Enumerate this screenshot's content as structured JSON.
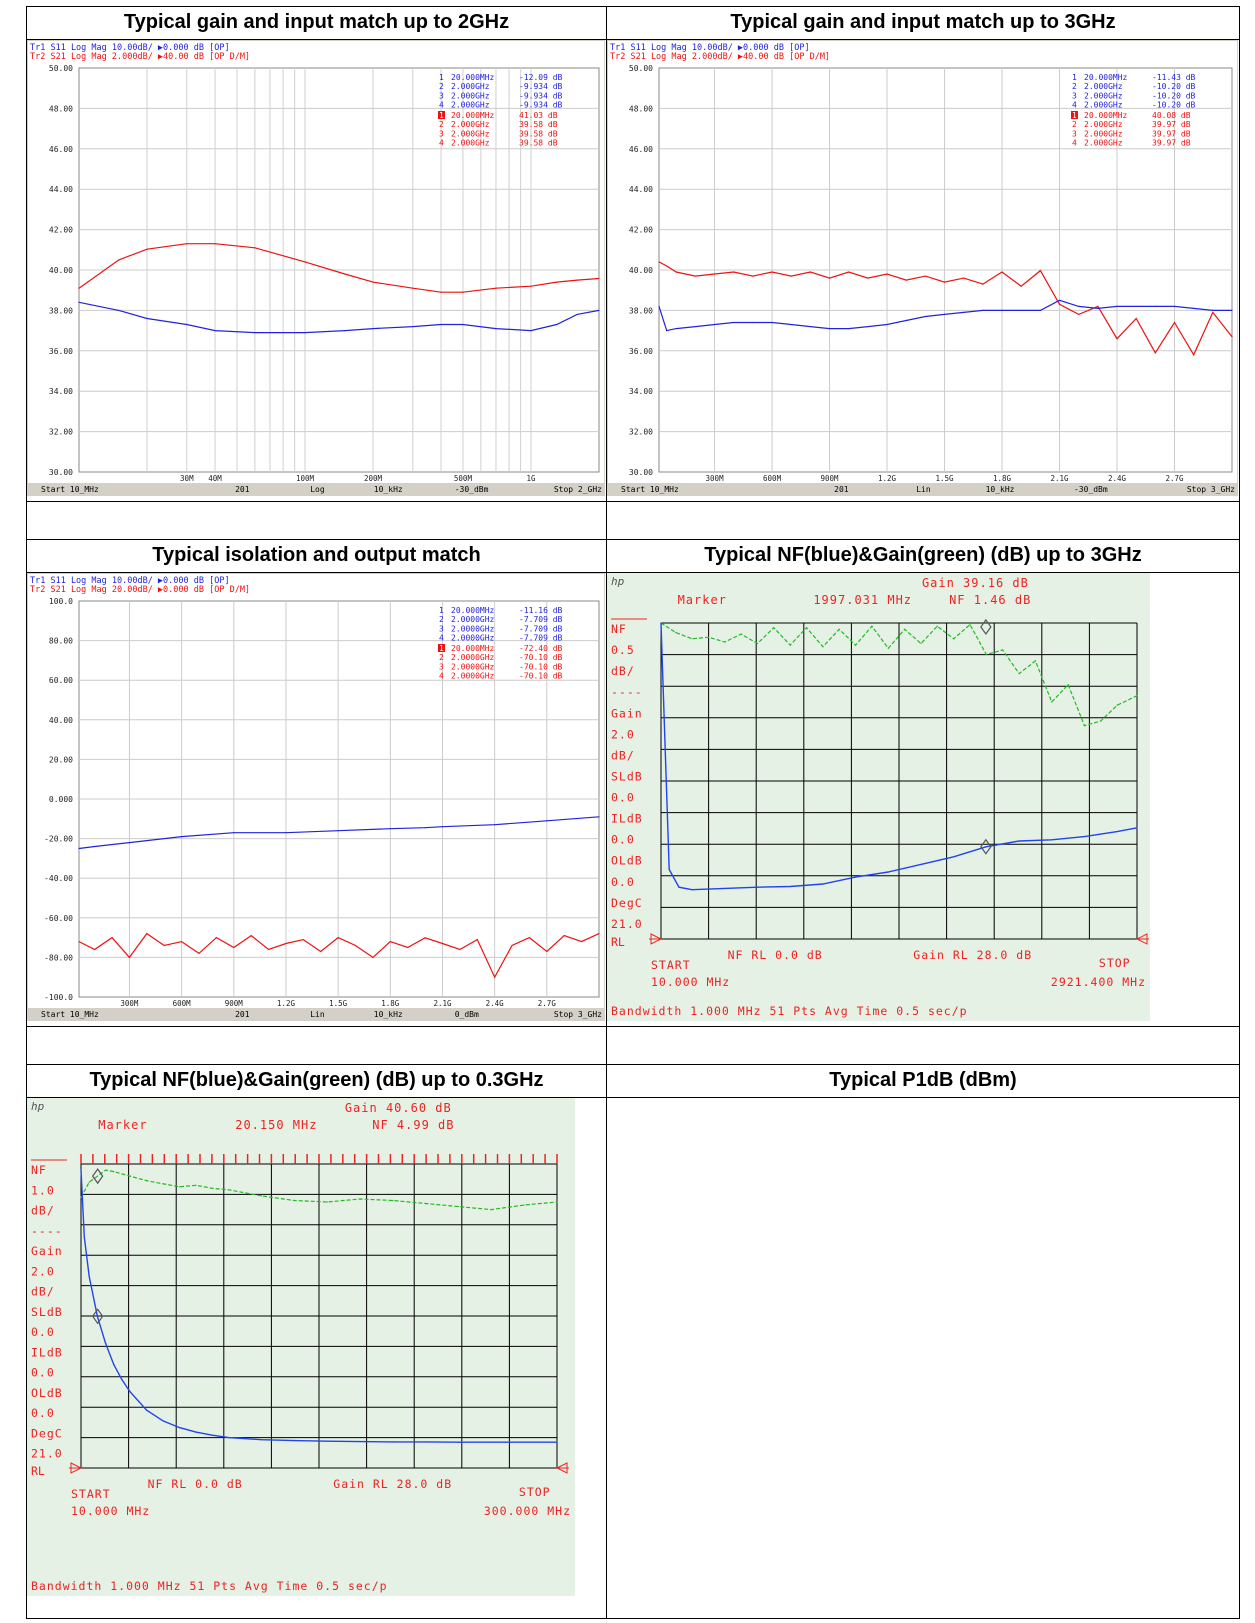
{
  "captions": [
    "Typical gain and input match up to 2GHz",
    "Typical gain and input match up to 3GHz",
    "Typical isolation and output match",
    "Typical NF(blue)&Gain(green) (dB) up to 3GHz",
    "Typical NF(blue)&Gain(green) (dB) up to 0.3GHz",
    "Typical P1dB (dBm)"
  ],
  "colors": {
    "s11": "#2222dd",
    "s21": "#ee1111",
    "nf": "#2244ee",
    "gain": "#22bb22",
    "hp_text": "#ee2222",
    "hp_bg": "#e4f1e4"
  },
  "chart_data": [
    {
      "type": "line",
      "id": "vna1",
      "header": [
        "Tr1  S11  Log Mag  10.00dB/  ▶0.000 dB  [OP]",
        "Tr2  S21  Log Mag  2.000dB/  ▶40.00 dB  [OP D/M]"
      ],
      "y_ticks": [
        "50.00",
        "48.00",
        "46.00",
        "44.00",
        "42.00",
        "40.00",
        "38.00",
        "36.00",
        "34.00",
        "32.00",
        "30.00"
      ],
      "y_range": [
        30,
        50
      ],
      "x_scale": "log",
      "x_range_mhz": [
        10,
        2000
      ],
      "x_ticks": [
        {
          "label": "30M",
          "v": 30
        },
        {
          "label": "40M",
          "v": 40
        },
        {
          "label": "100M",
          "v": 100
        },
        {
          "label": "200M",
          "v": 200
        },
        {
          "label": "500M",
          "v": 500
        },
        {
          "label": "1G",
          "v": 1000
        }
      ],
      "footer": [
        "Start 10_MHz",
        "201",
        "Log",
        "10_kHz",
        "-30_dBm",
        "Stop 2_GHz"
      ],
      "markers_s11": [
        [
          "1",
          "20.000MHz",
          "-12.09 dB"
        ],
        [
          "2",
          "2.000GHz",
          "-9.934 dB"
        ],
        [
          "3",
          "2.000GHz",
          "-9.934 dB"
        ],
        [
          "4",
          "2.000GHz",
          "-9.934 dB"
        ]
      ],
      "markers_s21": [
        [
          "1",
          "20.000MHz",
          "41.03 dB"
        ],
        [
          "2",
          "2.000GHz",
          "39.58 dB"
        ],
        [
          "3",
          "2.000GHz",
          "39.58 dB"
        ],
        [
          "4",
          "2.000GHz",
          "39.58 dB"
        ]
      ],
      "series": [
        {
          "name": "S21",
          "x": [
            10,
            15,
            20,
            30,
            40,
            60,
            100,
            150,
            200,
            300,
            400,
            500,
            700,
            1000,
            1300,
            1600,
            2000
          ],
          "values": [
            39.1,
            40.5,
            41.03,
            41.3,
            41.3,
            41.1,
            40.4,
            39.8,
            39.4,
            39.1,
            38.9,
            38.9,
            39.1,
            39.2,
            39.4,
            39.5,
            39.58
          ]
        },
        {
          "name": "S11",
          "x": [
            10,
            15,
            20,
            30,
            40,
            60,
            100,
            150,
            200,
            300,
            400,
            500,
            700,
            1000,
            1300,
            1600,
            2000
          ],
          "values": [
            38.4,
            38.0,
            37.6,
            37.3,
            37.0,
            36.9,
            36.9,
            37.0,
            37.1,
            37.2,
            37.3,
            37.3,
            37.1,
            37.0,
            37.3,
            37.8,
            38.0
          ]
        }
      ]
    },
    {
      "type": "line",
      "id": "vna2",
      "header": [
        "Tr1  S11  Log Mag  10.00dB/  ▶0.000 dB  [OP]",
        "Tr2  S21  Log Mag  2.000dB/  ▶40.00 dB  [OP D/M]"
      ],
      "y_ticks": [
        "50.00",
        "48.00",
        "46.00",
        "44.00",
        "42.00",
        "40.00",
        "38.00",
        "36.00",
        "34.00",
        "32.00",
        "30.00"
      ],
      "y_range": [
        30,
        50
      ],
      "x_scale": "linear",
      "x_range_mhz": [
        10,
        3000
      ],
      "x_ticks": [
        {
          "label": "300M",
          "v": 300
        },
        {
          "label": "600M",
          "v": 600
        },
        {
          "label": "900M",
          "v": 900
        },
        {
          "label": "1.2G",
          "v": 1200
        },
        {
          "label": "1.5G",
          "v": 1500
        },
        {
          "label": "1.8G",
          "v": 1800
        },
        {
          "label": "2.1G",
          "v": 2100
        },
        {
          "label": "2.4G",
          "v": 2400
        },
        {
          "label": "2.7G",
          "v": 2700
        }
      ],
      "footer": [
        "Start 10_MHz",
        "201",
        "Lin",
        "10_kHz",
        "-30_dBm",
        "Stop 3_GHz"
      ],
      "markers_s11": [
        [
          "1",
          "20.000MHz",
          "-11.43 dB"
        ],
        [
          "2",
          "2.000GHz",
          "-10.20 dB"
        ],
        [
          "3",
          "2.000GHz",
          "-10.20 dB"
        ],
        [
          "4",
          "2.000GHz",
          "-10.20 dB"
        ]
      ],
      "markers_s21": [
        [
          "1",
          "20.000MHz",
          "40.08 dB"
        ],
        [
          "2",
          "2.000GHz",
          "39.97 dB"
        ],
        [
          "3",
          "2.000GHz",
          "39.97 dB"
        ],
        [
          "4",
          "2.000GHz",
          "39.97 dB"
        ]
      ],
      "series": [
        {
          "name": "S21",
          "x": [
            10,
            50,
            100,
            200,
            300,
            400,
            500,
            600,
            700,
            800,
            900,
            1000,
            1100,
            1200,
            1300,
            1400,
            1500,
            1600,
            1700,
            1800,
            1900,
            2000,
            2100,
            2200,
            2300,
            2400,
            2500,
            2600,
            2700,
            2800,
            2900,
            3000
          ],
          "values": [
            40.4,
            40.2,
            39.9,
            39.7,
            39.8,
            39.9,
            39.7,
            39.9,
            39.7,
            39.9,
            39.6,
            39.9,
            39.6,
            39.8,
            39.5,
            39.7,
            39.4,
            39.6,
            39.3,
            39.9,
            39.2,
            39.97,
            38.3,
            37.8,
            38.2,
            36.6,
            37.6,
            35.9,
            37.4,
            35.8,
            37.9,
            36.7
          ]
        },
        {
          "name": "S11",
          "x": [
            10,
            50,
            100,
            200,
            300,
            400,
            500,
            600,
            700,
            800,
            900,
            1000,
            1100,
            1200,
            1300,
            1400,
            1500,
            1600,
            1700,
            1800,
            1900,
            2000,
            2100,
            2200,
            2300,
            2400,
            2500,
            2600,
            2700,
            2800,
            2900,
            3000
          ],
          "values": [
            38.2,
            37.0,
            37.1,
            37.2,
            37.3,
            37.4,
            37.4,
            37.4,
            37.3,
            37.2,
            37.1,
            37.1,
            37.2,
            37.3,
            37.5,
            37.7,
            37.8,
            37.9,
            38.0,
            38.0,
            38.0,
            38.0,
            38.5,
            38.2,
            38.1,
            38.2,
            38.2,
            38.2,
            38.2,
            38.1,
            38.0,
            38.0
          ]
        }
      ]
    },
    {
      "type": "line",
      "id": "vna3",
      "header": [
        "Tr1  S11  Log Mag  10.00dB/  ▶0.000 dB  [OP]",
        "Tr2  S21  Log Mag  20.00dB/  ▶0.000 dB  [OP D/M]"
      ],
      "y_ticks": [
        "100.0",
        "80.00",
        "60.00",
        "40.00",
        "20.00",
        "0.000",
        "-20.00",
        "-40.00",
        "-60.00",
        "-80.00",
        "-100.0"
      ],
      "y_range": [
        -100,
        100
      ],
      "x_scale": "linear",
      "x_range_mhz": [
        10,
        3000
      ],
      "x_ticks": [
        {
          "label": "300M",
          "v": 300
        },
        {
          "label": "600M",
          "v": 600
        },
        {
          "label": "900M",
          "v": 900
        },
        {
          "label": "1.2G",
          "v": 1200
        },
        {
          "label": "1.5G",
          "v": 1500
        },
        {
          "label": "1.8G",
          "v": 1800
        },
        {
          "label": "2.1G",
          "v": 2100
        },
        {
          "label": "2.4G",
          "v": 2400
        },
        {
          "label": "2.7G",
          "v": 2700
        }
      ],
      "footer": [
        "Start 10_MHz",
        "201",
        "Lin",
        "10_kHz",
        "0_dBm",
        "Stop 3_GHz"
      ],
      "markers_s11": [
        [
          "1",
          "20.000MHz",
          "-11.16 dB"
        ],
        [
          "2",
          "2.0000GHz",
          "-7.709 dB"
        ],
        [
          "3",
          "2.0000GHz",
          "-7.709 dB"
        ],
        [
          "4",
          "2.0000GHz",
          "-7.709 dB"
        ]
      ],
      "markers_s21": [
        [
          "1",
          "20.000MHz",
          "-72.40 dB"
        ],
        [
          "2",
          "2.0000GHz",
          "-70.10 dB"
        ],
        [
          "3",
          "2.0000GHz",
          "-70.10 dB"
        ],
        [
          "4",
          "2.0000GHz",
          "-70.10 dB"
        ]
      ],
      "series": [
        {
          "name": "S11",
          "x": [
            10,
            100,
            300,
            600,
            900,
            1200,
            1500,
            1800,
            2000,
            2100,
            2400,
            2700,
            3000
          ],
          "values": [
            -25,
            -24,
            -22,
            -19,
            -17,
            -17,
            -16,
            -15,
            -14.5,
            -14,
            -13,
            -11,
            -9
          ]
        },
        {
          "name": "S21",
          "x": [
            10,
            100,
            200,
            300,
            400,
            500,
            600,
            700,
            800,
            900,
            1000,
            1100,
            1200,
            1300,
            1400,
            1500,
            1600,
            1700,
            1800,
            1900,
            2000,
            2100,
            2200,
            2300,
            2400,
            2500,
            2600,
            2700,
            2800,
            2900,
            3000
          ],
          "values": [
            -72,
            -76,
            -70,
            -80,
            -68,
            -74,
            -72,
            -78,
            -70,
            -75,
            -69,
            -76,
            -73,
            -71,
            -77,
            -70,
            -74,
            -80,
            -72,
            -75,
            -70.1,
            -73,
            -76,
            -71,
            -90,
            -74,
            -70,
            -77,
            -69,
            -72,
            -68
          ]
        }
      ]
    },
    {
      "type": "line",
      "id": "nf1",
      "gain_line": "Gain  39.16  dB",
      "marker_line": [
        "Marker",
        "1997.031  MHz",
        "NF  1.46  dB"
      ],
      "left_labels": [
        "NF",
        "0.5",
        "dB/",
        "----",
        "Gain",
        "2.0",
        "dB/",
        "SLdB",
        "0.0",
        "ILdB",
        "0.0",
        "OLdB",
        "0.0",
        "DegC",
        "21.0"
      ],
      "rl": "RL",
      "bottom": [
        "START",
        "10.000  MHz",
        "NF  RL    0.0  dB",
        "Gain  RL  28.0  dB",
        "STOP",
        "2921.400  MHz"
      ],
      "status": "Bandwidth  1.000  MHz    51  Pts    Avg  Time    0.5  sec/p",
      "x_range_mhz": [
        10,
        2921.4
      ],
      "nf_series": {
        "name": "NF",
        "x": [
          10,
          60,
          120,
          200,
          400,
          600,
          800,
          1000,
          1200,
          1400,
          1600,
          1800,
          2000,
          2200,
          2400,
          2600,
          2800,
          2921.4
        ],
        "values": [
          9.5,
          1.1,
          0.82,
          0.78,
          0.8,
          0.82,
          0.83,
          0.87,
          0.98,
          1.06,
          1.18,
          1.3,
          1.46,
          1.55,
          1.57,
          1.62,
          1.7,
          1.76
        ]
      },
      "gain_series": {
        "name": "Gain",
        "x": [
          10,
          100,
          200,
          300,
          400,
          500,
          600,
          700,
          800,
          900,
          1000,
          1100,
          1200,
          1300,
          1400,
          1500,
          1600,
          1700,
          1800,
          1900,
          2000,
          2100,
          2200,
          2300,
          2400,
          2500,
          2600,
          2700,
          2800,
          2921.4
        ],
        "values": [
          41.2,
          40.6,
          40.2,
          40.3,
          40.0,
          40.5,
          39.9,
          40.9,
          39.8,
          40.9,
          39.7,
          40.8,
          39.8,
          41.0,
          39.6,
          40.8,
          39.9,
          41.0,
          40.2,
          41.1,
          39.2,
          39.5,
          38.0,
          38.8,
          36.2,
          37.3,
          34.7,
          35.0,
          36.0,
          36.6
        ]
      }
    },
    {
      "type": "line",
      "id": "nf2",
      "gain_line": "Gain  40.60  dB",
      "marker_line": [
        "Marker",
        "20.150  MHz",
        "NF  4.99  dB"
      ],
      "left_labels": [
        "NF",
        "1.0",
        "dB/",
        "----",
        "Gain",
        "2.0",
        "dB/",
        "SLdB",
        "0.0",
        "ILdB",
        "0.0",
        "OLdB",
        "0.0",
        "DegC",
        "21.0"
      ],
      "rl": "RL",
      "bottom": [
        "START",
        "10.000  MHz",
        "NF  RL    0.0  dB",
        "Gain  RL  28.0  dB",
        "STOP",
        "300.000  MHz"
      ],
      "status": "Bandwidth  1.000  MHz    51  Pts    Avg  Time    0.5  sec/p",
      "x_range_mhz": [
        10,
        300
      ],
      "nf_series": {
        "name": "NF",
        "x": [
          10,
          12,
          15,
          20,
          25,
          30,
          35,
          40,
          50,
          60,
          70,
          80,
          90,
          100,
          120,
          140,
          160,
          180,
          200,
          220,
          240,
          260,
          280,
          300
        ],
        "values": [
          9.8,
          7.6,
          6.3,
          4.99,
          4.1,
          3.4,
          2.9,
          2.5,
          1.9,
          1.55,
          1.33,
          1.18,
          1.08,
          1.0,
          0.93,
          0.9,
          0.88,
          0.87,
          0.86,
          0.86,
          0.85,
          0.85,
          0.85,
          0.85
        ]
      },
      "gain_series": {
        "name": "Gain",
        "x": [
          10,
          15,
          20,
          25,
          30,
          40,
          50,
          60,
          70,
          80,
          90,
          100,
          120,
          140,
          160,
          180,
          200,
          220,
          240,
          260,
          280,
          300
        ],
        "values": [
          39.2,
          40.2,
          40.6,
          41.0,
          40.9,
          40.6,
          40.3,
          40.1,
          39.9,
          40.0,
          39.8,
          39.7,
          39.3,
          39.0,
          38.9,
          39.1,
          39.0,
          38.8,
          38.6,
          38.4,
          38.7,
          38.9
        ]
      }
    }
  ]
}
